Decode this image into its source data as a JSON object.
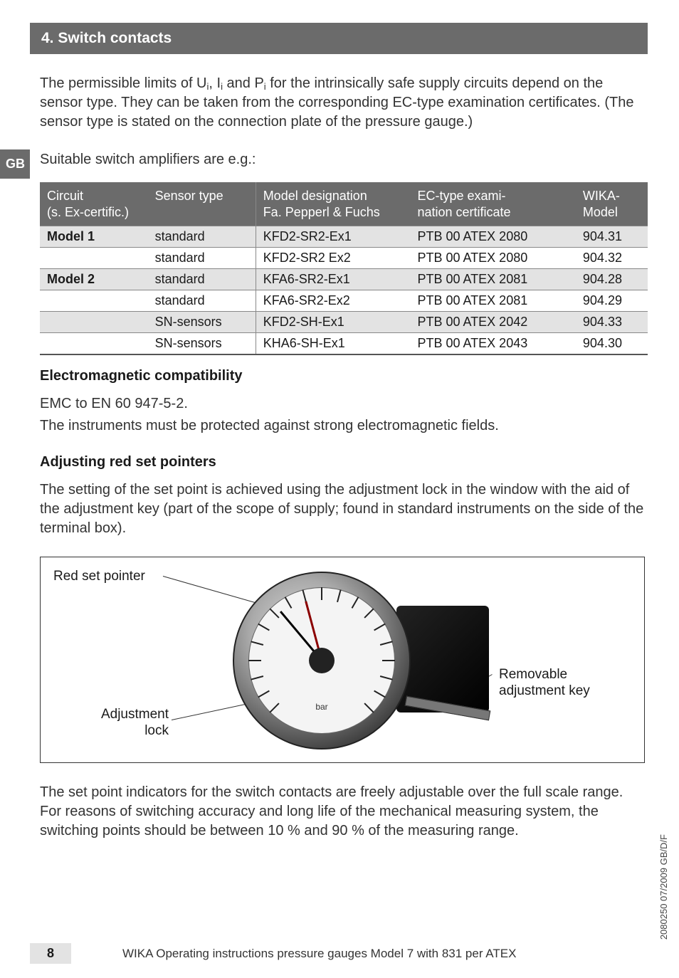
{
  "sideTab": "GB",
  "section": {
    "number": "4.",
    "title": "Switch contacts"
  },
  "paragraphs": {
    "intro": "The permissible limits of Ui, Ii and Pi for the intrinsically safe supply circuits depend on the sensor type. They can be taken from the corresponding EC-type examination certificates. (The sensor type is stated on the connection plate of the pressure gauge.)",
    "suitable": "Suitable switch amplifiers are e.g.:",
    "emc_heading": "Electromagnetic compatibility",
    "emc_line1": "EMC to EN 60 947-5-2.",
    "emc_line2": "The instruments must be protected against strong electromagnetic fields.",
    "adj_heading": "Adjusting red set pointers",
    "adj_para": "The setting of the set point is achieved using the adjustment lock in the window with the aid of the adjustment key (part of the scope of supply; found in standard instruments on the side of the terminal box).",
    "setpoint_para": "The set point indicators for the switch contacts are freely adjustable over the full scale range. For reasons of switching accuracy and long life of the mechanical measuring system, the switching points should be between 10 % and 90 % of the measuring range."
  },
  "table": {
    "headers": {
      "circuit_l1": "Circuit",
      "circuit_l2": "(s. Ex-certific.)",
      "sensor": "Sensor type",
      "desig_l1": "Model designation",
      "desig_l2": "Fa. Pepperl & Fuchs",
      "ec_l1": "EC-type exami-",
      "ec_l2": "nation certificate",
      "wika_l1": "WIKA-",
      "wika_l2": "Model"
    },
    "rows": [
      {
        "shade": true,
        "circuit": "Model 1",
        "sensor": "standard",
        "desig": "KFD2-SR2-Ex1",
        "ec": "PTB 00 ATEX 2080",
        "wika": "904.31"
      },
      {
        "shade": false,
        "circuit": "",
        "sensor": "standard",
        "desig": "KFD2-SR2 Ex2",
        "ec": "PTB 00 ATEX 2080",
        "wika": "904.32"
      },
      {
        "shade": true,
        "circuit": "Model 2",
        "sensor": "standard",
        "desig": "KFA6-SR2-Ex1",
        "ec": "PTB 00 ATEX 2081",
        "wika": "904.28"
      },
      {
        "shade": false,
        "circuit": "",
        "sensor": "standard",
        "desig": "KFA6-SR2-Ex2",
        "ec": "PTB 00 ATEX 2081",
        "wika": "904.29"
      },
      {
        "shade": true,
        "circuit": "",
        "sensor": "SN-sensors",
        "desig": "KFD2-SH-Ex1",
        "ec": "PTB 00 ATEX 2042",
        "wika": "904.33"
      },
      {
        "shade": false,
        "circuit": "",
        "sensor": "SN-sensors",
        "desig": "KHA6-SH-Ex1",
        "ec": "PTB 00 ATEX 2043",
        "wika": "904.30"
      }
    ]
  },
  "diagram": {
    "red_set_pointer": "Red set pointer",
    "adjustment_lock_l1": "Adjustment",
    "adjustment_lock_l2": "lock",
    "removable_l1": "Removable",
    "removable_l2": "adjustment key",
    "gauge_unit": "bar",
    "tick_angles": [
      -135,
      -120,
      -105,
      -90,
      -75,
      -60,
      -45,
      -30,
      -15,
      0,
      15,
      30,
      45,
      60,
      75,
      90,
      105,
      120,
      135
    ],
    "colors": {
      "border": "#333333",
      "red_pointer": "#8b0000",
      "black_pointer": "#000000",
      "gauge_face": "#f4f4f4",
      "gauge_rim_dark": "#111111"
    }
  },
  "side_text": "2080250 07/2009 GB/D/F",
  "footer": {
    "page": "8",
    "text": "WIKA Operating instructions pressure gauges Model 7 with 831 per ATEX"
  }
}
